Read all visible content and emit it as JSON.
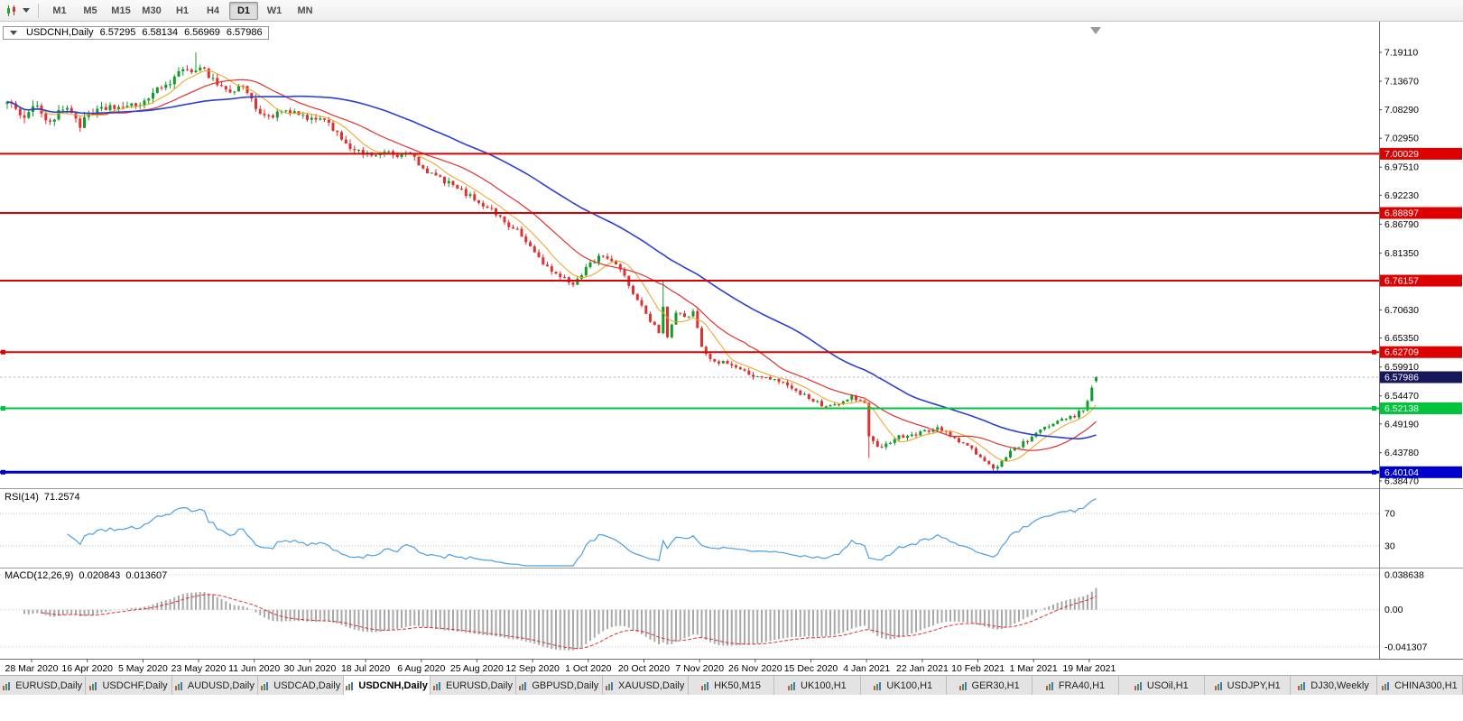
{
  "toolbar": {
    "timeframes": [
      "M1",
      "M5",
      "M15",
      "M30",
      "H1",
      "H4",
      "D1",
      "W1",
      "MN"
    ],
    "active_timeframe": "D1",
    "icons": [
      "candlestick-chart-icon",
      "dropdown-caret-icon"
    ]
  },
  "chart": {
    "symbol_title": "USDCNH,Daily",
    "ohlc": {
      "open": "6.57295",
      "high": "6.58134",
      "low": "6.56969",
      "close": "6.57986"
    },
    "price_axis_labels": [
      "7.19110",
      "7.13670",
      "7.08290",
      "7.02950",
      "6.97510",
      "6.92230",
      "6.86790",
      "6.81350",
      "6.70630",
      "6.65350",
      "6.59910",
      "6.54470",
      "6.49190",
      "6.43780",
      "6.38470"
    ],
    "hlines": [
      {
        "price": 7.00029,
        "label": "7.00029",
        "color": "#dd0000",
        "width": 2,
        "kind": "resistance",
        "handles": false
      },
      {
        "price": 6.88897,
        "label": "6.88897",
        "color": "#dd0000",
        "width": 2,
        "kind": "resistance",
        "handles": false
      },
      {
        "price": 6.76157,
        "label": "6.76157",
        "color": "#dd0000",
        "width": 2,
        "kind": "resistance",
        "handles": false
      },
      {
        "price": 6.62709,
        "label": "6.62709",
        "color": "#dd0000",
        "width": 2,
        "kind": "resistance",
        "handles": true
      },
      {
        "price": 6.52138,
        "label": "6.52138",
        "color": "#00c43c",
        "width": 2,
        "kind": "support",
        "handles": true
      },
      {
        "price": 6.40104,
        "label": "6.40104",
        "color": "#0000cc",
        "width": 3,
        "kind": "support",
        "handles": true
      }
    ],
    "current_price": {
      "label": "6.57986",
      "price": 6.57986,
      "badge_color": "#17175c"
    },
    "dates": [
      "28 Mar 2020",
      "16 Apr 2020",
      "5 May 2020",
      "23 May 2020",
      "11 Jun 2020",
      "30 Jun 2020",
      "18 Jul 2020",
      "6 Aug 2020",
      "25 Aug 2020",
      "12 Sep 2020",
      "1 Oct 2020",
      "20 Oct 2020",
      "7 Nov 2020",
      "26 Nov 2020",
      "15 Dec 2020",
      "4 Jan 2021",
      "22 Jan 2021",
      "10 Feb 2021",
      "1 Mar 2021",
      "19 Mar 2021"
    ],
    "shift_marker_icon": "chart-shift-marker-icon"
  },
  "rsi": {
    "header": "RSI(14)",
    "value": "71.2574",
    "levels": [
      "70",
      "30"
    ],
    "line_color": "#4aa0e0"
  },
  "macd": {
    "header": "MACD(12,26,9)",
    "main_value": "0.020843",
    "signal_value": "0.013607",
    "axis_labels": [
      "0.038638",
      "0.00",
      "-0.041307"
    ]
  },
  "tabs": {
    "items": [
      {
        "label": "EURUSD,Daily",
        "active": false
      },
      {
        "label": "USDCHF,Daily",
        "active": false
      },
      {
        "label": "AUDUSD,Daily",
        "active": false
      },
      {
        "label": "USDCAD,Daily",
        "active": false
      },
      {
        "label": "USDCNH,Daily",
        "active": true
      },
      {
        "label": "EURUSD,Daily",
        "active": false
      },
      {
        "label": "GBPUSD,Daily",
        "active": false
      },
      {
        "label": "XAUUSD,Daily",
        "active": false
      },
      {
        "label": "HK50,M15",
        "active": false
      },
      {
        "label": "UK100,H1",
        "active": false
      },
      {
        "label": "UK100,H1",
        "active": false
      },
      {
        "label": "GER30,H1",
        "active": false
      },
      {
        "label": "FRA40,H1",
        "active": false
      },
      {
        "label": "USOil,H1",
        "active": false
      },
      {
        "label": "USDJPY,H1",
        "active": false
      },
      {
        "label": "DJ30,Weekly",
        "active": false
      },
      {
        "label": "CHINA300,H1",
        "active": false
      }
    ]
  },
  "chart_data": {
    "type": "candlestick",
    "title": "USDCNH Daily",
    "ylim": [
      6.3762,
      7.2217
    ],
    "x_axis_dates": [
      "28 Mar 2020",
      "16 Apr 2020",
      "5 May 2020",
      "23 May 2020",
      "11 Jun 2020",
      "30 Jun 2020",
      "18 Jul 2020",
      "6 Aug 2020",
      "25 Aug 2020",
      "12 Sep 2020",
      "1 Oct 2020",
      "20 Oct 2020",
      "7 Nov 2020",
      "26 Nov 2020",
      "15 Dec 2020",
      "4 Jan 2021",
      "22 Jan 2021",
      "10 Feb 2021",
      "1 Mar 2021",
      "19 Mar 2021"
    ],
    "price_axis_ticks": [
      7.1911,
      7.1367,
      7.0829,
      7.0295,
      6.9751,
      6.9223,
      6.8679,
      6.8135,
      6.7063,
      6.6535,
      6.5991,
      6.5447,
      6.4919,
      6.4378,
      6.3847
    ],
    "support_resistance_levels": [
      7.00029,
      6.88897,
      6.76157,
      6.62709,
      6.52138,
      6.40104
    ],
    "last_price": 6.57986,
    "candle_count": 255,
    "last_candle": {
      "open": 6.57295,
      "high": 6.58134,
      "low": 6.56969,
      "close": 6.57986
    },
    "close_keypoints": [
      [
        0,
        7.105
      ],
      [
        3,
        7.065
      ],
      [
        6,
        7.095
      ],
      [
        10,
        7.06
      ],
      [
        14,
        7.09
      ],
      [
        17,
        7.055
      ],
      [
        19,
        7.07
      ],
      [
        24,
        7.09
      ],
      [
        28,
        7.085
      ],
      [
        32,
        7.1
      ],
      [
        36,
        7.125
      ],
      [
        40,
        7.15
      ],
      [
        45,
        7.165
      ],
      [
        48,
        7.14
      ],
      [
        52,
        7.115
      ],
      [
        55,
        7.13
      ],
      [
        58,
        7.085
      ],
      [
        61,
        7.07
      ],
      [
        65,
        7.08
      ],
      [
        71,
        7.065
      ],
      [
        75,
        7.058
      ],
      [
        78,
        7.03
      ],
      [
        81,
        7.005
      ],
      [
        84,
        6.998
      ],
      [
        88,
        7.003
      ],
      [
        91,
        6.995
      ],
      [
        94,
        7.002
      ],
      [
        97,
        6.968
      ],
      [
        100,
        6.958
      ],
      [
        103,
        6.945
      ],
      [
        107,
        6.925
      ],
      [
        110,
        6.91
      ],
      [
        113,
        6.895
      ],
      [
        116,
        6.872
      ],
      [
        119,
        6.855
      ],
      [
        123,
        6.815
      ],
      [
        126,
        6.785
      ],
      [
        129,
        6.768
      ],
      [
        132,
        6.755
      ],
      [
        134,
        6.775
      ],
      [
        136,
        6.795
      ],
      [
        139,
        6.81
      ],
      [
        141,
        6.8
      ],
      [
        143,
        6.78
      ],
      [
        146,
        6.74
      ],
      [
        149,
        6.7
      ],
      [
        152,
        6.665
      ],
      [
        153,
        6.715
      ],
      [
        154,
        6.655
      ],
      [
        156,
        6.7
      ],
      [
        158,
        6.695
      ],
      [
        160,
        6.7
      ],
      [
        162,
        6.64
      ],
      [
        164,
        6.615
      ],
      [
        168,
        6.605
      ],
      [
        172,
        6.59
      ],
      [
        175,
        6.58
      ],
      [
        178,
        6.575
      ],
      [
        181,
        6.572
      ],
      [
        184,
        6.555
      ],
      [
        188,
        6.535
      ],
      [
        191,
        6.525
      ],
      [
        194,
        6.528
      ],
      [
        197,
        6.545
      ],
      [
        200,
        6.53
      ],
      [
        201,
        6.465
      ],
      [
        203,
        6.448
      ],
      [
        206,
        6.46
      ],
      [
        208,
        6.468
      ],
      [
        211,
        6.472
      ],
      [
        214,
        6.477
      ],
      [
        217,
        6.487
      ],
      [
        220,
        6.468
      ],
      [
        223,
        6.455
      ],
      [
        227,
        6.43
      ],
      [
        230,
        6.408
      ],
      [
        232,
        6.42
      ],
      [
        235,
        6.447
      ],
      [
        238,
        6.46
      ],
      [
        240,
        6.472
      ],
      [
        243,
        6.49
      ],
      [
        246,
        6.5
      ],
      [
        249,
        6.506
      ],
      [
        251,
        6.52
      ],
      [
        252,
        6.535
      ],
      [
        253,
        6.558
      ],
      [
        254,
        6.57986
      ]
    ],
    "volatility_keypoints": [
      [
        0,
        0.018
      ],
      [
        45,
        0.014
      ],
      [
        90,
        0.011
      ],
      [
        140,
        0.01
      ],
      [
        180,
        0.009
      ],
      [
        254,
        0.008
      ]
    ],
    "spikes": [
      {
        "i": 44,
        "high": 7.191
      },
      {
        "i": 153,
        "high": 6.761
      },
      {
        "i": 201,
        "low": 6.428
      },
      {
        "i": 230,
        "low": 6.401
      }
    ],
    "colors": {
      "bull": "#0f9d2a",
      "bear": "#e03030",
      "ma_fast": "#f0a11b",
      "ma_medium": "#e03131",
      "ma_slow": "#2b3fd0",
      "rsi": "#4aa0e0",
      "macd_hist": "#a8a8a8",
      "macd_signal": "#e03131"
    },
    "moving_averages": [
      {
        "period": 8,
        "color_key": "ma_fast"
      },
      {
        "period": 20,
        "color_key": "ma_medium"
      },
      {
        "period": 50,
        "color_key": "ma_slow"
      }
    ],
    "indicators": [
      {
        "name": "RSI",
        "period": 14,
        "current": 71.2574,
        "levels": [
          70,
          30
        ]
      },
      {
        "name": "MACD",
        "fast": 12,
        "slow": 26,
        "signal": 9,
        "current_macd": 0.020843,
        "current_signal": 0.013607,
        "axis_range": [
          0.038638,
          -0.041307
        ]
      }
    ]
  }
}
